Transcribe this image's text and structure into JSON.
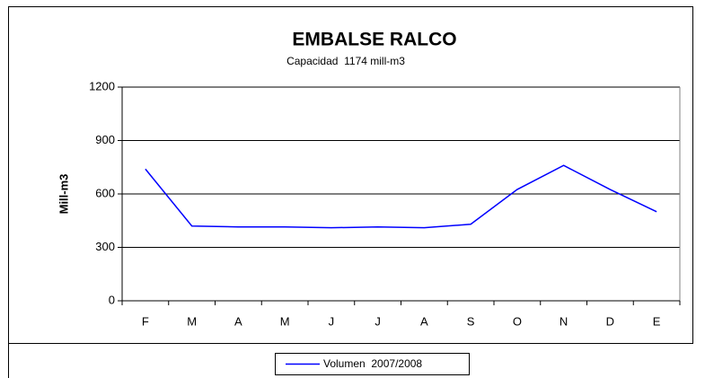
{
  "chart_data": {
    "type": "line",
    "title": "EMBALSE RALCO",
    "subtitle": "Capacidad  1174 mill-m3",
    "y_label": "Mill-m3",
    "categories": [
      "F",
      "M",
      "A",
      "M",
      "J",
      "J",
      "A",
      "S",
      "O",
      "N",
      "D",
      "E"
    ],
    "series": [
      {
        "name": "Volumen  2007/2008",
        "color": "#0000ff",
        "values": [
          740,
          420,
          415,
          415,
          410,
          415,
          410,
          430,
          625,
          760,
          625,
          500
        ]
      }
    ],
    "ylim": [
      0,
      1200
    ],
    "yticks": [
      0,
      300,
      600,
      900,
      1200
    ],
    "grid": true,
    "legend": "bottom"
  }
}
